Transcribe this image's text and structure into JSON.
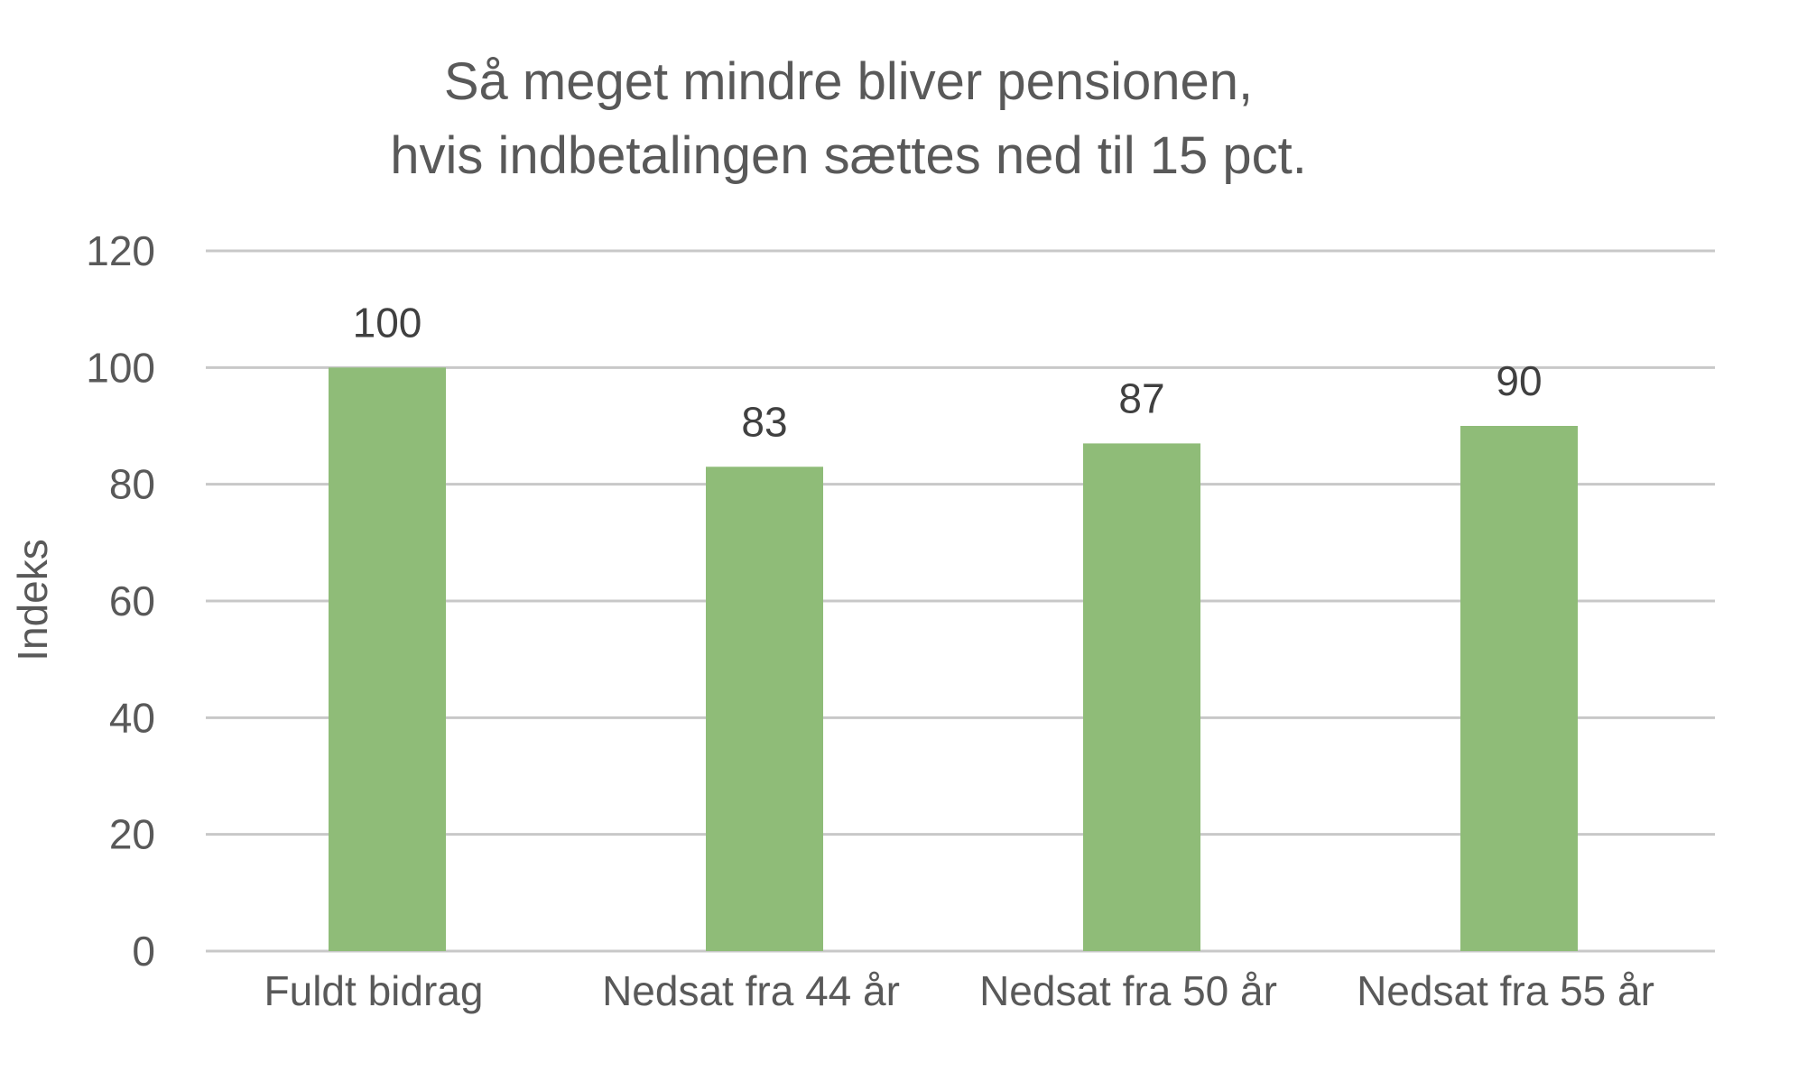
{
  "chart_data": {
    "type": "bar",
    "title": "Så meget mindre bliver pensionen,",
    "subtitle": "hvis indbetalingen sættes ned til 15 pct.",
    "xlabel": "",
    "ylabel": "Indeks",
    "categories": [
      "Fuldt bidrag",
      "Nedsat fra 44 år",
      "Nedsat fra 50 år",
      "Nedsat fra 55 år"
    ],
    "values": [
      100,
      83,
      87,
      90
    ],
    "data_labels": [
      "100",
      "83",
      "87",
      "90"
    ],
    "yticks": [
      "0",
      "20",
      "40",
      "60",
      "80",
      "100",
      "120"
    ],
    "ylim": [
      0,
      120
    ],
    "grid": true,
    "legend": "none",
    "colors": {
      "bar": "#8fbc78",
      "grid": "#c8c8c8",
      "text": "#595959"
    }
  }
}
